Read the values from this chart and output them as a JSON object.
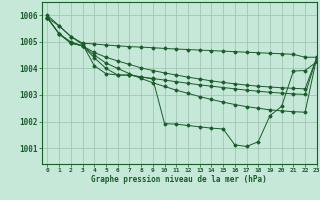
{
  "title": "Graphe pression niveau de la mer (hPa)",
  "background_color": "#c5e8d8",
  "grid_color": "#9dbfac",
  "line_color": "#1a5c2a",
  "xlim": [
    -0.5,
    23
  ],
  "ylim": [
    1000.4,
    1006.5
  ],
  "yticks": [
    1001,
    1002,
    1003,
    1004,
    1005,
    1006
  ],
  "xticks": [
    0,
    1,
    2,
    3,
    4,
    5,
    6,
    7,
    8,
    9,
    10,
    11,
    12,
    13,
    14,
    15,
    16,
    17,
    18,
    19,
    20,
    21,
    22,
    23
  ],
  "s0": [
    1005.9,
    1005.6,
    1005.2,
    1004.95,
    1004.92,
    1004.88,
    1004.85,
    1004.82,
    1004.8,
    1004.78,
    1004.75,
    1004.73,
    1004.71,
    1004.69,
    1004.67,
    1004.65,
    1004.63,
    1004.61,
    1004.59,
    1004.57,
    1004.55,
    1004.53,
    1004.42,
    1004.42
  ],
  "s1": [
    1005.9,
    1005.3,
    1005.0,
    1004.85,
    1004.6,
    1004.42,
    1004.28,
    1004.15,
    1004.02,
    1003.92,
    1003.83,
    1003.75,
    1003.67,
    1003.6,
    1003.53,
    1003.47,
    1003.42,
    1003.37,
    1003.33,
    1003.3,
    1003.27,
    1003.25,
    1003.23,
    1004.42
  ],
  "s2": [
    1005.9,
    1005.3,
    1004.95,
    1004.85,
    1004.5,
    1004.2,
    1004.0,
    1003.8,
    1003.62,
    1003.46,
    1003.32,
    1003.18,
    1003.06,
    1002.94,
    1002.83,
    1002.73,
    1002.64,
    1002.56,
    1002.5,
    1002.44,
    1002.4,
    1002.37,
    1002.35,
    1004.42
  ],
  "s3": [
    1005.9,
    1005.3,
    1004.95,
    1004.85,
    1004.4,
    1004.0,
    1003.75,
    1003.75,
    1003.68,
    1003.62,
    1003.56,
    1003.5,
    1003.44,
    1003.38,
    1003.33,
    1003.28,
    1003.23,
    1003.18,
    1003.14,
    1003.1,
    1003.07,
    1003.04,
    1003.02,
    1004.42
  ],
  "s4": [
    1006.0,
    1005.6,
    1005.2,
    1004.9,
    1004.1,
    1003.8,
    1003.75,
    1003.75,
    1003.68,
    1003.6,
    1001.92,
    1001.9,
    1001.85,
    1001.8,
    1001.75,
    1001.72,
    1001.12,
    1001.06,
    1001.24,
    1002.22,
    1002.57,
    1003.9,
    1003.92,
    1004.25
  ]
}
